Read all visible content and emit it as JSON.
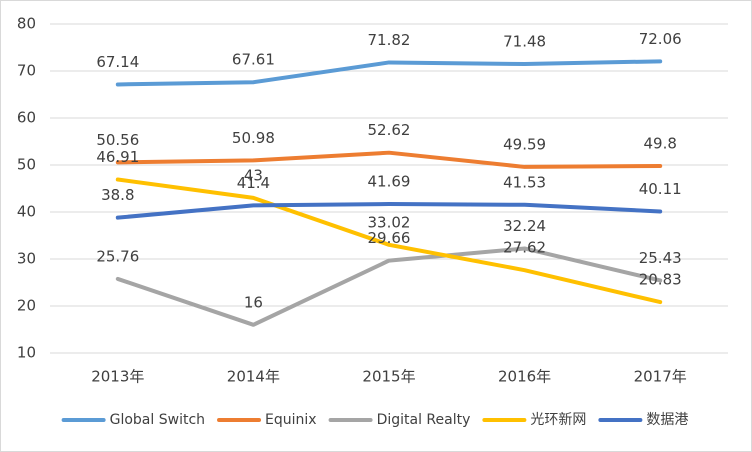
{
  "chart_data": {
    "type": "line",
    "categories": [
      "2013年",
      "2014年",
      "2015年",
      "2016年",
      "2017年"
    ],
    "series": [
      {
        "name": "Global Switch",
        "color": "#5b9bd5",
        "values": [
          67.14,
          67.61,
          71.82,
          71.48,
          72.06
        ]
      },
      {
        "name": "Equinix",
        "color": "#ed7d31",
        "values": [
          50.56,
          50.98,
          52.62,
          49.59,
          49.8
        ]
      },
      {
        "name": "Digital Realty",
        "color": "#a5a5a5",
        "values": [
          25.76,
          16,
          29.66,
          32.24,
          25.43
        ]
      },
      {
        "name": "光环新网",
        "color": "#ffc000",
        "values": [
          46.91,
          43,
          33.02,
          27.62,
          20.83
        ]
      },
      {
        "name": "数据港",
        "color": "#4472c4",
        "values": [
          38.8,
          41.4,
          41.69,
          41.53,
          40.11
        ]
      }
    ],
    "ylim": [
      10,
      80
    ],
    "yticks": [
      10,
      20,
      30,
      40,
      50,
      60,
      70,
      80
    ],
    "grid": true,
    "legend": "bottom"
  }
}
